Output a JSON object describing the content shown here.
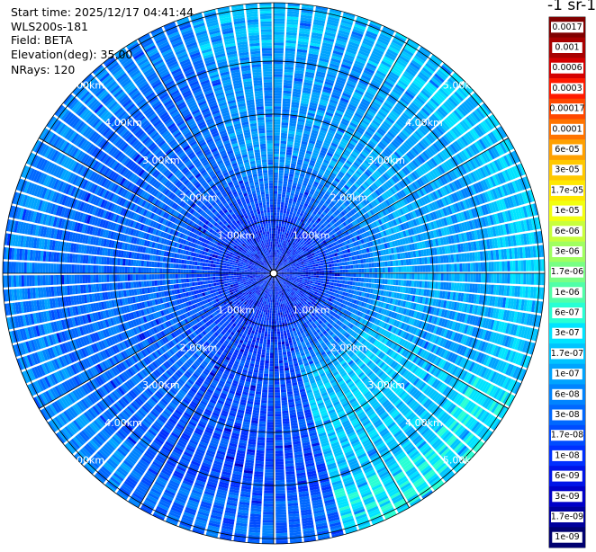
{
  "info": {
    "start_time": "Start time: 2025/12/17 04:41:44",
    "instrument": "WLS200s-181",
    "field": "Field: BETA",
    "elevation": "Elevation(deg): 35.00",
    "nrays": "NRays: 120"
  },
  "colorbar": {
    "title": "-1 sr-1",
    "labels": [
      "0.0017",
      "0.001",
      "0.0006",
      "0.0003",
      "0.00017",
      "0.0001",
      "6e-05",
      "3e-05",
      "1.7e-05",
      "1e-05",
      "6e-06",
      "3e-06",
      "1.7e-06",
      "1e-06",
      "6e-07",
      "3e-07",
      "1.7e-07",
      "1e-07",
      "6e-08",
      "3e-08",
      "1.7e-08",
      "1e-08",
      "6e-09",
      "3e-09",
      "1.7e-09",
      "1e-09"
    ],
    "colors": [
      "#800000",
      "#a80000",
      "#d40000",
      "#ff1a00",
      "#ff4800",
      "#ff7400",
      "#ffa000",
      "#ffc800",
      "#ffe800",
      "#f2ff10",
      "#c8ff3c",
      "#a0ff60",
      "#78ff84",
      "#50ffa8",
      "#28ffd4",
      "#00e4ff",
      "#00c4ff",
      "#00a4ff",
      "#0084ff",
      "#0068ff",
      "#004cff",
      "#0030ff",
      "#0014e8",
      "#0000c8",
      "#00009c",
      "#000070"
    ]
  },
  "chart_data": {
    "type": "polar-heatmap",
    "field": "BETA",
    "elevation_deg": 35.0,
    "n_rays": 120,
    "range_unit": "km",
    "range_rings_km": [
      1,
      2,
      3,
      4,
      5
    ],
    "ring_labels": [
      "1.00km",
      "2.00km",
      "3.00km",
      "4.00km",
      "5.00km"
    ],
    "max_range_km": 5.1,
    "azimuth_spokes_deg": [
      0,
      30,
      60,
      90,
      120,
      150,
      180,
      210,
      240,
      270,
      300,
      330
    ],
    "color_scale": "log",
    "value_range": [
      1e-09,
      0.0017
    ],
    "approx_sector_levels": [
      {
        "sector": "north-east",
        "level": "1e-07"
      },
      {
        "sector": "east",
        "level": "1e-07"
      },
      {
        "sector": "south-east",
        "level": "1.7e-07"
      },
      {
        "sector": "south",
        "level": "1.7e-08"
      },
      {
        "sector": "west",
        "level": "3e-08"
      },
      {
        "sector": "north-west",
        "level": "3e-08"
      },
      {
        "sector": "near-center",
        "level": "1e-08"
      }
    ]
  }
}
